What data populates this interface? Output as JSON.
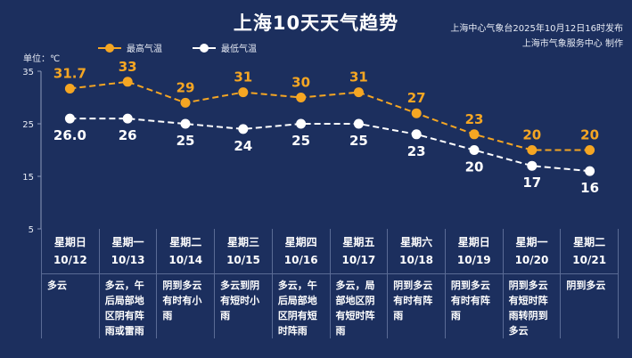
{
  "title": "上海10天天气趋势",
  "source_line1": "上海中心气象台2025年10月12日16时发布",
  "source_line2": "上海市气象服务中心 制作",
  "unit_label": "单位：℃",
  "colors": {
    "high": "#f5a623",
    "low": "#ffffff",
    "background": "#1c2f5e"
  },
  "chart_data": {
    "type": "line",
    "title": "上海10天天气趋势",
    "ylim": [
      5,
      35
    ],
    "yticks": [
      35,
      25,
      15,
      5
    ],
    "grid": false,
    "legend_position": "top-left",
    "categories": [
      "10/12",
      "10/13",
      "10/14",
      "10/15",
      "10/16",
      "10/17",
      "10/18",
      "10/19",
      "10/20",
      "10/21"
    ],
    "series": [
      {
        "name": "最高气温",
        "values": [
          31.7,
          33,
          29,
          31,
          30,
          31,
          27,
          23,
          20,
          20
        ],
        "labels": [
          "31.7",
          "33",
          "29",
          "31",
          "30",
          "31",
          "27",
          "23",
          "20",
          "20"
        ],
        "color": "#f5a623"
      },
      {
        "name": "最低气温",
        "values": [
          26.0,
          26,
          25,
          24,
          25,
          25,
          23,
          20,
          17,
          16
        ],
        "labels": [
          "26.0",
          "26",
          "25",
          "24",
          "25",
          "25",
          "23",
          "20",
          "17",
          "16"
        ],
        "color": "#ffffff"
      }
    ]
  },
  "days": [
    {
      "weekday": "星期日",
      "date": "10/12",
      "desc": "多云"
    },
    {
      "weekday": "星期一",
      "date": "10/13",
      "desc": "多云，午后局部地区阴有阵雨或雷雨"
    },
    {
      "weekday": "星期二",
      "date": "10/14",
      "desc": "阴到多云有时有小雨"
    },
    {
      "weekday": "星期三",
      "date": "10/15",
      "desc": "多云到阴有短时小雨"
    },
    {
      "weekday": "星期四",
      "date": "10/16",
      "desc": "多云，午后局部地区阴有短时阵雨"
    },
    {
      "weekday": "星期五",
      "date": "10/17",
      "desc": "多云，局部地区阴有短时阵雨"
    },
    {
      "weekday": "星期六",
      "date": "10/18",
      "desc": "阴到多云有时有阵雨"
    },
    {
      "weekday": "星期日",
      "date": "10/19",
      "desc": "阴到多云有时有阵雨"
    },
    {
      "weekday": "星期一",
      "date": "10/20",
      "desc": "阴到多云有短时阵雨转阴到多云"
    },
    {
      "weekday": "星期二",
      "date": "10/21",
      "desc": "阴到多云"
    }
  ]
}
